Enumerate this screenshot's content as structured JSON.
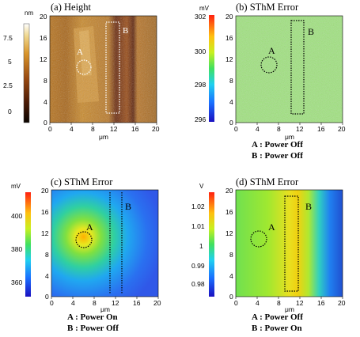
{
  "panels": [
    {
      "title": "(a) Height",
      "colorbar_unit": "nm",
      "colorbar_ticks": [
        "7.5",
        "5",
        "2.5",
        "0"
      ],
      "region_labels": [
        "A",
        "B"
      ],
      "x_ticks": [
        "0",
        "4",
        "8",
        "12",
        "16",
        "20"
      ],
      "y_ticks": [
        "20",
        "16",
        "12",
        "8",
        "4",
        "0"
      ],
      "axis_unit": "μm",
      "caption_lines": []
    },
    {
      "title": "(b) SThM Error",
      "colorbar_unit": "mV",
      "colorbar_ticks": [
        "302",
        "300",
        "298",
        "296"
      ],
      "region_labels": [
        "A",
        "B"
      ],
      "x_ticks": [
        "0",
        "4",
        "8",
        "12",
        "16",
        "20"
      ],
      "y_ticks": [
        "20",
        "16",
        "12",
        "8",
        "4",
        "0"
      ],
      "axis_unit": "μm",
      "caption_lines": [
        "A : Power Off",
        "B : Power Off"
      ]
    },
    {
      "title": "(c) SThM Error",
      "colorbar_unit": "mV",
      "colorbar_ticks": [
        "400",
        "380",
        "360"
      ],
      "region_labels": [
        "A",
        "B"
      ],
      "x_ticks": [
        "0",
        "4",
        "8",
        "12",
        "16",
        "20"
      ],
      "y_ticks": [
        "20",
        "16",
        "12",
        "8",
        "4",
        "0"
      ],
      "axis_unit": "μm",
      "caption_lines": [
        "A : Power On",
        "B : Power Off"
      ]
    },
    {
      "title": "(d) SThM Error",
      "colorbar_unit": "V",
      "colorbar_ticks": [
        "1.02",
        "1.01",
        "1",
        "0.99",
        "0.98"
      ],
      "region_labels": [
        "A",
        "B"
      ],
      "x_ticks": [
        "0",
        "4",
        "8",
        "12",
        "16",
        "20"
      ],
      "y_ticks": [
        "20",
        "16",
        "12",
        "8",
        "4",
        "0"
      ],
      "axis_unit": "μm",
      "caption_lines": [
        "A : Power Off",
        "B : Power On"
      ]
    }
  ]
}
